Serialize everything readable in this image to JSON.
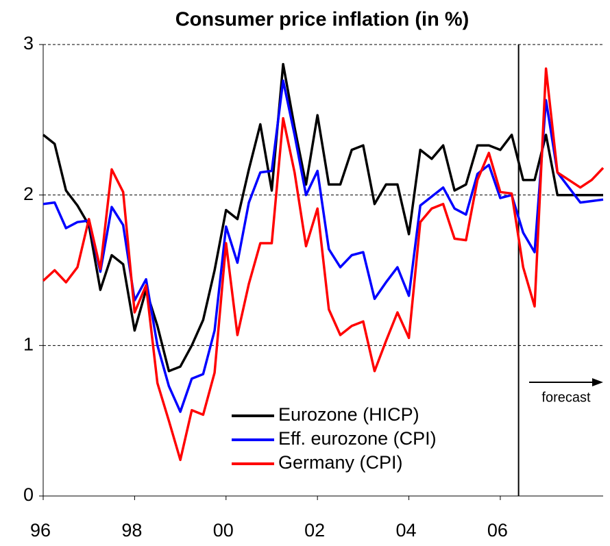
{
  "chart_data": {
    "type": "line",
    "title": "Consumer price inflation (in %)",
    "x": [
      1996,
      1996.25,
      1996.5,
      1996.75,
      1997,
      1997.25,
      1997.5,
      1997.75,
      1998,
      1998.25,
      1998.5,
      1998.75,
      1999,
      1999.25,
      1999.5,
      1999.75,
      2000,
      2000.25,
      2000.5,
      2000.75,
      2001,
      2001.25,
      2001.5,
      2001.75,
      2002,
      2002.25,
      2002.5,
      2002.75,
      2003,
      2003.25,
      2003.5,
      2003.75,
      2004,
      2004.25,
      2004.5,
      2004.75,
      2005,
      2005.25,
      2005.5,
      2005.75,
      2006,
      2006.25,
      2006.5,
      2006.75,
      2007,
      2007.25,
      2007.5,
      2007.75,
      2008,
      2008.25
    ],
    "series": [
      {
        "name": "Eurozone (HICP)",
        "color": "#000000",
        "values": [
          2.4,
          2.34,
          2.03,
          1.93,
          1.8,
          1.37,
          1.6,
          1.54,
          1.1,
          1.37,
          1.13,
          0.83,
          0.86,
          1.0,
          1.17,
          1.5,
          1.9,
          1.84,
          2.17,
          2.47,
          2.03,
          2.87,
          2.45,
          2.07,
          2.53,
          2.07,
          2.07,
          2.3,
          2.33,
          1.94,
          2.07,
          2.07,
          1.74,
          2.3,
          2.24,
          2.33,
          2.03,
          2.07,
          2.33,
          2.33,
          2.3,
          2.4,
          2.1,
          2.1,
          2.4,
          2.0,
          2.0,
          2.0,
          2.0,
          2.0
        ]
      },
      {
        "name": "Eff. eurozone (CPI)",
        "color": "#0000ff",
        "values": [
          1.94,
          1.95,
          1.78,
          1.82,
          1.83,
          1.49,
          1.92,
          1.8,
          1.3,
          1.44,
          1.0,
          0.73,
          0.56,
          0.78,
          0.81,
          1.1,
          1.79,
          1.55,
          1.95,
          2.15,
          2.16,
          2.76,
          2.4,
          2.0,
          2.16,
          1.64,
          1.52,
          1.6,
          1.62,
          1.31,
          1.42,
          1.52,
          1.33,
          1.93,
          1.99,
          2.05,
          1.91,
          1.87,
          2.14,
          2.2,
          1.98,
          2.0,
          1.75,
          1.62,
          2.63,
          2.15,
          2.05,
          1.95,
          1.96,
          1.97
        ]
      },
      {
        "name": "Germany (CPI)",
        "color": "#ff0000",
        "values": [
          1.43,
          1.5,
          1.42,
          1.52,
          1.84,
          1.51,
          2.17,
          2.02,
          1.22,
          1.4,
          0.75,
          0.5,
          0.24,
          0.57,
          0.54,
          0.82,
          1.68,
          1.07,
          1.41,
          1.68,
          1.68,
          2.51,
          2.15,
          1.66,
          1.91,
          1.24,
          1.07,
          1.13,
          1.16,
          0.83,
          1.03,
          1.22,
          1.05,
          1.82,
          1.91,
          1.94,
          1.71,
          1.7,
          2.1,
          2.28,
          2.02,
          2.01,
          1.52,
          1.26,
          2.84,
          2.15,
          2.1,
          2.05,
          2.1,
          2.18
        ]
      }
    ],
    "xlim": [
      1996,
      2008.25
    ],
    "xticks": [
      {
        "value": 1996,
        "label": "96"
      },
      {
        "value": 1998,
        "label": "98"
      },
      {
        "value": 2000,
        "label": "00"
      },
      {
        "value": 2002,
        "label": "02"
      },
      {
        "value": 2004,
        "label": "04"
      },
      {
        "value": 2006,
        "label": "06"
      }
    ],
    "ylim": [
      0,
      3
    ],
    "yticks": [
      0,
      1,
      2,
      3
    ],
    "grid": true,
    "forecast_start": 2006.4,
    "forecast_label": "forecast"
  }
}
